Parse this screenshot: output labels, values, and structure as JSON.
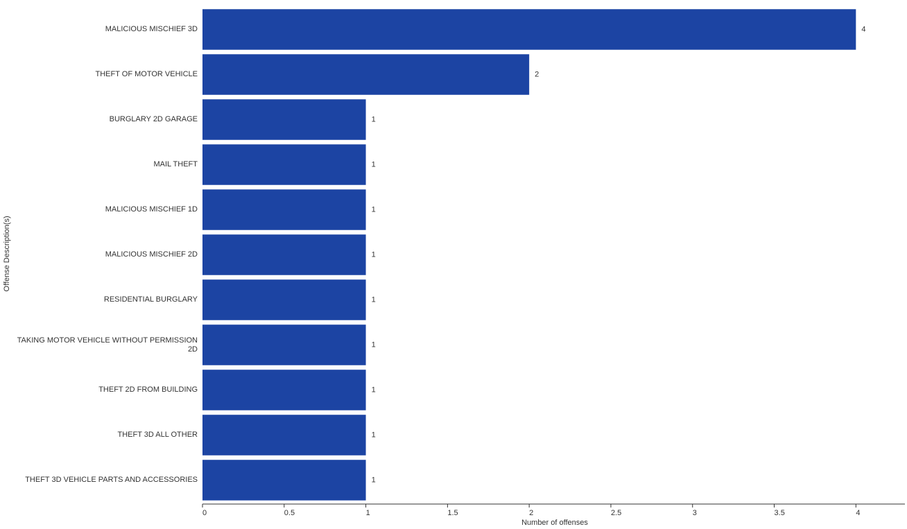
{
  "chart_data": {
    "type": "barh",
    "ylabel": "Offense Description(s)",
    "xlabel": "Number of offenses",
    "categories": [
      "MALICIOUS MISCHIEF 3D",
      "THEFT OF MOTOR VEHICLE",
      "BURGLARY 2D GARAGE",
      "MAIL THEFT",
      "MALICIOUS MISCHIEF 1D",
      "MALICIOUS MISCHIEF 2D",
      "RESIDENTIAL BURGLARY",
      "TAKING MOTOR VEHICLE WITHOUT PERMISSION 2D",
      "THEFT 2D FROM BUILDING",
      "THEFT 3D ALL OTHER",
      "THEFT 3D VEHICLE PARTS AND ACCESSORIES"
    ],
    "values": [
      4,
      2,
      1,
      1,
      1,
      1,
      1,
      1,
      1,
      1,
      1
    ],
    "color": "#1c44a3",
    "xlim": [
      0,
      4.3
    ],
    "xticks": [
      0,
      0.5,
      1,
      1.5,
      2,
      2.5,
      3,
      3.5,
      4
    ]
  }
}
